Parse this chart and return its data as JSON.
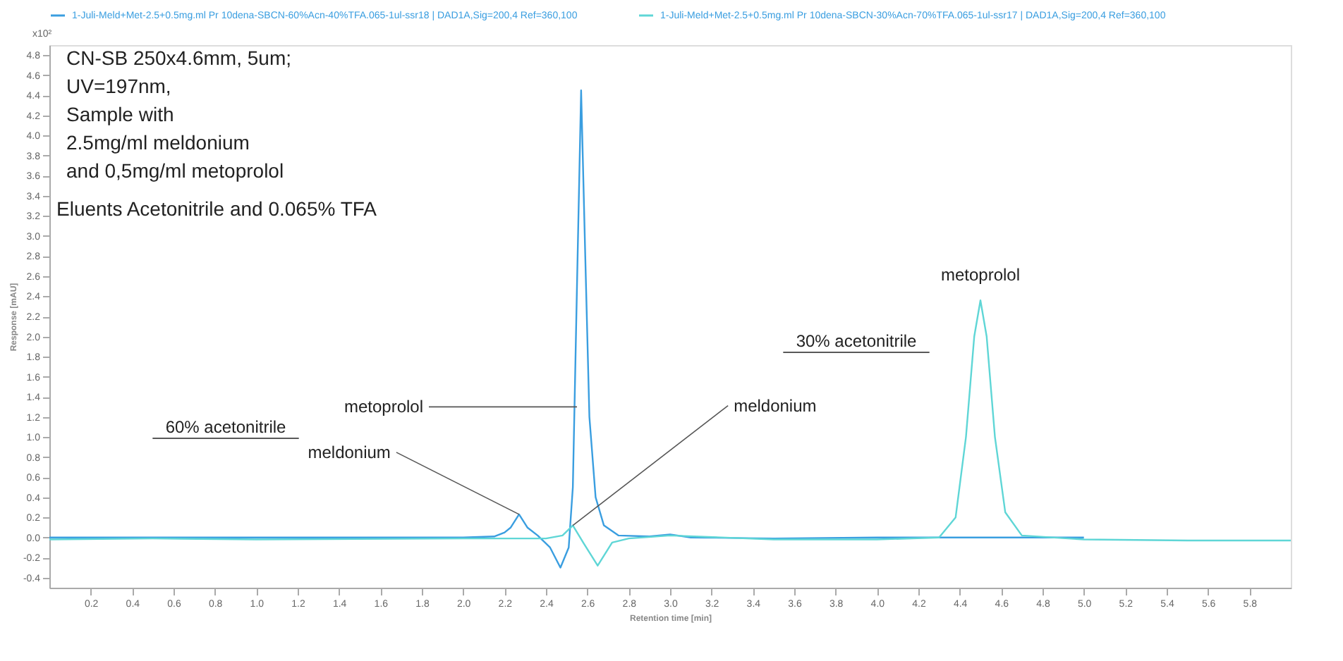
{
  "chart_data": {
    "type": "line",
    "xlabel": "Retention time [min]",
    "ylabel": "Response [mAU]",
    "xlim": [
      0,
      6
    ],
    "xticks": [
      0.2,
      0.4,
      0.6,
      0.8,
      {
        "value": 1,
        "label": "1.0"
      },
      1.2,
      1.4,
      1.6,
      1.8,
      {
        "value": 2,
        "label": "2.0"
      },
      2.2,
      2.4,
      2.6,
      2.8,
      {
        "value": 3,
        "label": "3.0"
      },
      3.2,
      3.4,
      3.6,
      3.8,
      {
        "value": 4,
        "label": "4.0"
      },
      4.2,
      4.4,
      4.6,
      4.8,
      {
        "value": 5,
        "label": "5.0"
      },
      5.2,
      5.4,
      5.6,
      5.8
    ],
    "ylim": [
      -0.5,
      4.9
    ],
    "yticks": [
      -0.4,
      -0.2,
      {
        "value": 0,
        "label": "0.0"
      },
      0.2,
      0.4,
      0.6,
      0.8,
      {
        "value": 1,
        "label": "1.0"
      },
      1.2,
      1.4,
      1.6,
      1.8,
      {
        "value": 2,
        "label": "2.0"
      },
      2.2,
      2.4,
      2.6,
      2.8,
      {
        "value": 3,
        "label": "3.0"
      },
      3.2,
      3.4,
      3.6,
      3.8,
      {
        "value": 4,
        "label": "4.0"
      },
      4.2,
      4.4,
      4.6,
      4.8
    ],
    "grid": false,
    "legend": "top",
    "marker": "none",
    "line_style": "solid",
    "series": [
      {
        "name": "1-Juli-Meld+Met-2.5+0.5mg.ml Pr 10dena-SBCN-60%Acn-40%TFA.065-1ul-ssr18 | DAD1A,Sig=200,4 Ref=360,100",
        "color": "#3a9ee0",
        "x": [
          0,
          0.5,
          1.0,
          1.5,
          2.0,
          2.15,
          2.2,
          2.23,
          2.27,
          2.31,
          2.36,
          2.42,
          2.47,
          2.51,
          2.53,
          2.55,
          2.57,
          2.59,
          2.61,
          2.64,
          2.68,
          2.75,
          2.9,
          3.0,
          3.1,
          3.5,
          4.0,
          4.5,
          5.0
        ],
        "values": [
          0,
          0,
          0,
          0,
          0,
          0.01,
          0.05,
          0.1,
          0.23,
          0.1,
          0.02,
          -0.1,
          -0.3,
          -0.1,
          0.5,
          2.5,
          4.45,
          2.8,
          1.2,
          0.4,
          0.12,
          0.02,
          0.01,
          0.03,
          0,
          -0.01,
          0,
          0,
          0
        ]
      },
      {
        "name": "1-Juli-Meld+Met-2.5+0.5mg.ml Pr 10dena-SBCN-30%Acn-70%TFA.065-1ul-ssr17 | DAD1A,Sig=200,4 Ref=360,100",
        "color": "#5fd6d6",
        "x": [
          0,
          0.5,
          1.0,
          2.0,
          2.4,
          2.48,
          2.53,
          2.58,
          2.65,
          2.72,
          2.8,
          3.0,
          3.5,
          4.0,
          4.3,
          4.38,
          4.43,
          4.47,
          4.5,
          4.53,
          4.57,
          4.62,
          4.7,
          5.0,
          5.5,
          6.0
        ],
        "values": [
          -0.02,
          -0.01,
          -0.02,
          -0.01,
          -0.01,
          0.02,
          0.12,
          -0.05,
          -0.28,
          -0.05,
          -0.01,
          0.02,
          -0.02,
          -0.02,
          0,
          0.2,
          1.0,
          2.0,
          2.36,
          2.0,
          1.0,
          0.25,
          0.02,
          -0.02,
          -0.03,
          -0.03
        ]
      }
    ],
    "annotations": [
      "x10²",
      "CN-SB 250x4.6mm, 5um;",
      "UV=197nm,",
      "Sample with",
      "2.5mg/ml meldonium",
      "and 0,5mg/ml metoprolol",
      "Eluents Acetonitrile and 0.065% TFA",
      "60% acetonitrile",
      "30% acetonitrile",
      {
        "text": "metoprolol",
        "x": 2.55,
        "y": 1.3
      },
      {
        "text": "meldonium",
        "x": 2.27,
        "y": 0.23
      },
      {
        "text": "meldonium",
        "x": 2.53,
        "y": 0.12
      },
      {
        "text": "metoprolol",
        "x": 4.5,
        "y": 2.36
      }
    ]
  }
}
